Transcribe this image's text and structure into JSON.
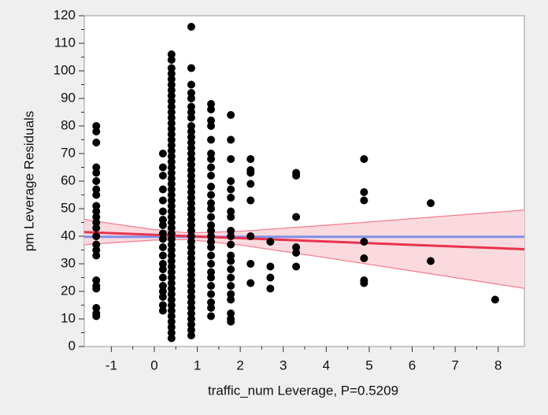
{
  "chart_data": {
    "type": "scatter",
    "x_label": "traffic_num Leverage, P=0.5209",
    "y_label": "pm Leverage Residuals",
    "xlim": [
      -1.63,
      8.61
    ],
    "ylim": [
      0,
      120
    ],
    "xticks": [
      -1,
      0,
      1,
      2,
      3,
      4,
      5,
      6,
      7,
      8
    ],
    "yticks": [
      0,
      10,
      20,
      30,
      40,
      50,
      60,
      70,
      80,
      90,
      100,
      110,
      120
    ],
    "point_color": "#000000",
    "groups": [
      {
        "x": -1.35,
        "values": [
          80,
          78,
          74,
          65,
          63,
          60,
          57,
          55,
          51,
          49,
          47,
          45,
          43,
          40,
          37,
          35,
          33,
          24,
          22,
          21,
          14,
          12,
          11
        ]
      },
      {
        "x": 0.2,
        "values": [
          70,
          65,
          62,
          57,
          53,
          49,
          46,
          44,
          41,
          39,
          36,
          33,
          30,
          28,
          25,
          22,
          20,
          18,
          15,
          13
        ]
      },
      {
        "x": 0.4,
        "values": [
          106,
          104,
          101,
          99,
          97,
          95,
          93,
          91,
          89,
          87,
          85,
          83,
          81,
          79,
          77,
          75,
          73,
          71,
          69,
          67,
          65,
          63,
          61,
          59,
          57,
          55,
          53,
          51,
          49,
          47,
          45,
          43,
          41,
          39,
          37,
          35,
          33,
          31,
          29,
          27,
          25,
          23,
          21,
          19,
          17,
          15,
          13,
          11,
          9,
          7,
          5,
          3
        ]
      },
      {
        "x": 0.86,
        "values": [
          116,
          101,
          95,
          92,
          90,
          87,
          85,
          83,
          80,
          78,
          76,
          74,
          72,
          70,
          68,
          66,
          64,
          62,
          60,
          58,
          56,
          54,
          52,
          50,
          48,
          46,
          44,
          42,
          40,
          38,
          36,
          34,
          32,
          30,
          28,
          26,
          24,
          22,
          20,
          18,
          16,
          14,
          12,
          10,
          8,
          6,
          4
        ]
      },
      {
        "x": 1.32,
        "values": [
          88,
          86,
          82,
          80,
          75,
          70,
          68,
          65,
          62,
          58,
          55,
          52,
          50,
          47,
          44,
          42,
          40,
          38,
          36,
          33,
          30,
          27,
          25,
          22,
          19,
          16,
          14,
          11
        ]
      },
      {
        "x": 1.78,
        "values": [
          84,
          75,
          68,
          60,
          57,
          54,
          49,
          47,
          42,
          40,
          37,
          33,
          31,
          28,
          25,
          22,
          19,
          17,
          12,
          10,
          9
        ]
      },
      {
        "x": 2.24,
        "values": [
          68,
          64,
          63,
          59,
          53,
          40,
          30,
          23
        ]
      },
      {
        "x": 2.7,
        "values": [
          38,
          29,
          25,
          21
        ]
      },
      {
        "x": 3.3,
        "values": [
          63,
          62,
          47,
          36,
          34,
          29
        ]
      },
      {
        "x": 4.88,
        "values": [
          68,
          56,
          53,
          38,
          32,
          24,
          23
        ]
      },
      {
        "x": 6.43,
        "values": [
          52,
          31
        ]
      },
      {
        "x": 7.93,
        "values": [
          17
        ]
      }
    ],
    "mean_line": {
      "color": "#8090e8",
      "x": [
        -1.63,
        8.61
      ],
      "values": [
        39.8,
        39.8
      ]
    },
    "fit_line": {
      "color": "#e8344e",
      "x": [
        -1.63,
        8.61
      ],
      "values": [
        41.5,
        35.3
      ]
    },
    "confidence_band": {
      "color": "#f47c8c",
      "fill": "#fadadf",
      "x": [
        -1.63,
        -1,
        0,
        0.8,
        2,
        4,
        6,
        8.61
      ],
      "upper": [
        46.1,
        44.6,
        42.4,
        41.2,
        41.8,
        44.0,
        46.4,
        49.5
      ],
      "lower": [
        36.9,
        37.6,
        38.6,
        38.8,
        36.8,
        32.2,
        27.4,
        21.1
      ]
    }
  }
}
